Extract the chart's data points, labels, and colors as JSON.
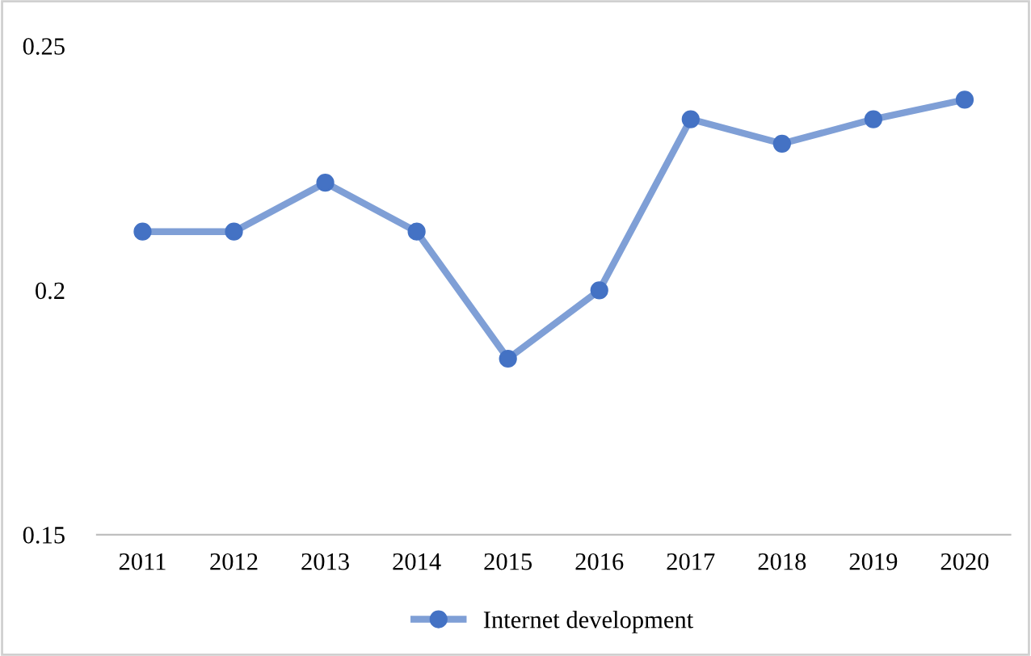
{
  "chart_data": {
    "type": "line",
    "categories": [
      "2011",
      "2012",
      "2013",
      "2014",
      "2015",
      "2016",
      "2017",
      "2018",
      "2019",
      "2020"
    ],
    "series": [
      {
        "name": "Internet development",
        "color": "#7f9fd6",
        "values": [
          0.212,
          0.212,
          0.222,
          0.212,
          0.186,
          0.2,
          0.235,
          0.23,
          0.235,
          0.239
        ]
      }
    ],
    "ylim": [
      0.15,
      0.25
    ],
    "yticks": [
      0.15,
      0.2,
      0.25
    ],
    "grid": false,
    "legend": "bottom",
    "marker": "circle",
    "line_style": "solid"
  }
}
